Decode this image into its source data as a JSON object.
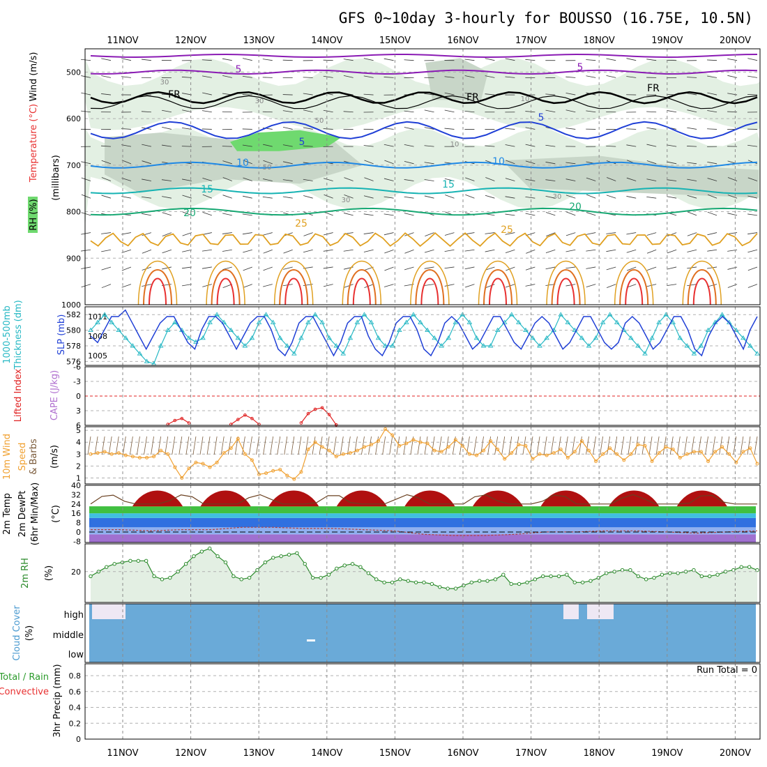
{
  "title": "GFS 0~10day 3-hourly for BOUSSO (16.75E, 10.5N)",
  "colors": {
    "frame": "#000000",
    "grid": "#b0b0b0",
    "rh_light": "#e3f0e3",
    "rh_mid": "#c8d6c8",
    "rh_dark": "#a8bca8",
    "rh_green": "#6fd96f",
    "purple": "#8a1ab4",
    "blue_dark": "#1f3fd6",
    "blue_mid": "#1e88e5",
    "teal": "#16b3b3",
    "green_teal": "#17a873",
    "orange": "#e0a020",
    "orange_dark": "#e07020",
    "red": "#e83030",
    "cyan_series": "#26b8c4",
    "slp_blue": "#1f3fd6",
    "li_red": "#e02020",
    "wind_orange": "#f0a030",
    "cloud_blue": "#6aaad8",
    "rh_series": "#2a8a2a"
  },
  "dates": [
    "11NOV",
    "12NOV",
    "13NOV",
    "14NOV",
    "15NOV",
    "16NOV",
    "17NOV",
    "18NOV",
    "19NOV",
    "20NOV"
  ],
  "panel_labels": {
    "upper": {
      "rh": "RH (%)",
      "temperature": "Temperature (°C)",
      "wind": "Wind (m/s)",
      "millibars": "(millibars)"
    },
    "thick": {
      "line1": "1000-500mb",
      "line2": "Thickness (dm)",
      "slp": "SLP (mb)"
    },
    "li": {
      "lifted": "Lifted Index",
      "cape": "CAPE (J/kg)"
    },
    "wind10": {
      "line1": "10m Wind",
      "speed": "Speed",
      "barbs": "& Barbs",
      "unit": "(m/s)"
    },
    "temp2m": {
      "line1": "2m Temp",
      "line2": "2m DewPt",
      "line3": "(6hr Min/Max)",
      "unit": "(°C)"
    },
    "rh2m": {
      "name": "2m RH",
      "unit": "(%)"
    },
    "cloud": {
      "name": "Cloud Cover",
      "unit": "(%)",
      "high": "high",
      "middle": "middle",
      "low": "low"
    },
    "precip": {
      "line1": "Total / Rain",
      "line2": "Convective",
      "name": "3hr Precip (mm)"
    }
  },
  "run_total": "Run Total = 0",
  "contour_labels": {
    "wind_5a": "5",
    "wind_5b": "5",
    "fr1": "FR",
    "fr2": "FR",
    "fr3": "FR",
    "t5a": "5",
    "t5b": "5",
    "t10a": "10",
    "t10b": "10",
    "t15a": "15",
    "t15b": "15",
    "t20a": "20",
    "t20b": "20",
    "t25a": "25",
    "t25b": "25",
    "rh30a": "30",
    "rh30b": "30",
    "rh30c": "30",
    "rh30d": "30",
    "rh50a": "50",
    "rh50b": "50",
    "rh10a": "10",
    "rh10b": "10"
  },
  "chart_data": [
    {
      "type": "contour",
      "name": "upper-air cross section",
      "y_ticks": [
        "500",
        "600",
        "700",
        "800",
        "900",
        "1000"
      ],
      "ylim": [
        450,
        1000
      ],
      "isotherms_c": [
        -5,
        5,
        10,
        15,
        20,
        25
      ],
      "rh_contours_pct": [
        10,
        30,
        50
      ]
    },
    {
      "type": "line",
      "name": "thickness-slp",
      "thickness_ticks": [
        "582",
        "580",
        "578",
        "576"
      ],
      "slp_ticks": [
        "1011",
        "1008",
        "1005"
      ],
      "ylim_thickness": [
        575.5,
        583
      ],
      "ylim_slp": [
        1003.5,
        1012.5
      ],
      "thickness": [
        580,
        581,
        582,
        581,
        580,
        579,
        578,
        577,
        576,
        575.7,
        578,
        580,
        581,
        580,
        579,
        578.5,
        579,
        581,
        582,
        581,
        580,
        579,
        578,
        579,
        581,
        582,
        581,
        579,
        578,
        577,
        579,
        581,
        582,
        581,
        579,
        578,
        577,
        579,
        581,
        582,
        581,
        579,
        578,
        578,
        580,
        581,
        582,
        581,
        580,
        579,
        578,
        579,
        581,
        582,
        581,
        579,
        578,
        578,
        580,
        581,
        582,
        581,
        580,
        579,
        578,
        579,
        580,
        582,
        581,
        580,
        579,
        578,
        579,
        581,
        582,
        581,
        580,
        579,
        578,
        577,
        579,
        581,
        582,
        581,
        579,
        578,
        577,
        578,
        580,
        581,
        582,
        581,
        580,
        579,
        578,
        577
      ],
      "slp": [
        1008,
        1007,
        1009,
        1011,
        1011,
        1012,
        1010,
        1008,
        1006,
        1008,
        1010,
        1011,
        1011,
        1009,
        1007,
        1006,
        1009,
        1011,
        1011,
        1010,
        1008,
        1006,
        1008,
        1010,
        1011,
        1011,
        1009,
        1006,
        1005,
        1007,
        1010,
        1011,
        1011,
        1009,
        1007,
        1005,
        1007,
        1010,
        1011,
        1011,
        1008,
        1006,
        1005,
        1007,
        1010,
        1011,
        1011,
        1009,
        1006,
        1005,
        1007,
        1010,
        1011,
        1010,
        1008,
        1006,
        1007,
        1009,
        1011,
        1011,
        1009,
        1007,
        1006,
        1008,
        1010,
        1011,
        1010,
        1008,
        1006,
        1007,
        1009,
        1011,
        1011,
        1009,
        1007,
        1006,
        1007,
        1010,
        1011,
        1010,
        1008,
        1006,
        1007,
        1009,
        1011,
        1011,
        1009,
        1006,
        1005,
        1008,
        1010,
        1011,
        1010,
        1008,
        1006,
        1009,
        1011
      ]
    },
    {
      "type": "line",
      "name": "lifted-index-cape",
      "y_ticks": [
        "-6",
        "-3",
        "0",
        "3",
        "6"
      ],
      "ylim": [
        -6,
        6
      ],
      "lifted_index": [
        null,
        null,
        null,
        null,
        null,
        null,
        null,
        null,
        null,
        null,
        null,
        5.8,
        5.0,
        4.6,
        5.5,
        null,
        null,
        null,
        null,
        null,
        5.8,
        4.8,
        3.9,
        4.6,
        5.8,
        null,
        null,
        null,
        null,
        null,
        5.5,
        3.6,
        2.7,
        2.4,
        3.8,
        5.9
      ],
      "cape_jkg": []
    },
    {
      "type": "line",
      "name": "10m-wind-speed",
      "y_ticks": [
        "1",
        "2",
        "3",
        "4",
        "5"
      ],
      "ylim": [
        0.5,
        5.3
      ],
      "speed": [
        3.0,
        3.1,
        3.2,
        3.0,
        3.1,
        2.9,
        2.8,
        2.7,
        2.7,
        2.8,
        3.3,
        3.0,
        1.9,
        1.0,
        1.8,
        2.3,
        2.2,
        1.9,
        2.3,
        3.1,
        3.5,
        4.3,
        3.0,
        2.5,
        1.3,
        1.4,
        1.6,
        1.7,
        1.2,
        0.9,
        1.5,
        3.4,
        4.0,
        3.6,
        3.3,
        2.8,
        3.0,
        3.1,
        3.3,
        3.6,
        3.8,
        4.1,
        5.1,
        4.6,
        3.7,
        3.9,
        4.2,
        4.0,
        3.9,
        3.3,
        3.2,
        3.6,
        4.2,
        3.7,
        3.0,
        2.9,
        3.3,
        4.1,
        3.4,
        2.6,
        3.1,
        3.8,
        3.7,
        2.6,
        3.0,
        2.9,
        3.1,
        3.4,
        2.7,
        3.2,
        4.1,
        3.3,
        2.4,
        3.0,
        3.5,
        3.0,
        2.5,
        3.0,
        3.8,
        3.7,
        2.4,
        3.1,
        3.6,
        3.4,
        2.7,
        3.0,
        3.2,
        3.2,
        2.4,
        3.2,
        3.6,
        3.0,
        2.3,
        3.2,
        3.5,
        2.2
      ]
    },
    {
      "type": "area",
      "name": "2m-temp-dewpoint",
      "y_ticks": [
        "40",
        "32",
        "24",
        "16",
        "8",
        "0",
        "-8"
      ],
      "ylim": [
        -9,
        40
      ],
      "temp_max_c": [
        38.5,
        39.5,
        39.5,
        39.0,
        39.0,
        39.0,
        39.0,
        39.0,
        39.0
      ],
      "temp_min_c": [
        22,
        23,
        23,
        23,
        23,
        23,
        23,
        23,
        23,
        22
      ],
      "dewpoint_c": [
        2,
        2,
        1,
        2,
        2,
        4,
        4,
        3,
        3,
        2,
        1,
        -2,
        -3,
        -3,
        -2,
        0,
        0,
        1,
        1,
        0,
        -1,
        0,
        1
      ]
    },
    {
      "type": "area",
      "name": "2m-rh",
      "y_ticks": [
        "20"
      ],
      "ylim": [
        0,
        38
      ],
      "rh": [
        17,
        20,
        23,
        25,
        26,
        27,
        27,
        27,
        17,
        15,
        16,
        20,
        25,
        30,
        33,
        35,
        30,
        26,
        17,
        15,
        16,
        21,
        26,
        29,
        30,
        31,
        32,
        25,
        16,
        16,
        18,
        22,
        24,
        25,
        23,
        19,
        15,
        13,
        13,
        15,
        14,
        13,
        13,
        12,
        10,
        9,
        9,
        11,
        13,
        14,
        14,
        15,
        18,
        12,
        12,
        13,
        15,
        17,
        17,
        17,
        18,
        13,
        13,
        14,
        16,
        19,
        20,
        21,
        21,
        17,
        15,
        16,
        18,
        19,
        19,
        20,
        21,
        17,
        17,
        18,
        20,
        21,
        23,
        23,
        21
      ]
    },
    {
      "type": "area",
      "name": "cloud-cover",
      "levels": [
        "high",
        "middle",
        "low"
      ],
      "high_cover_pct_gaps": [
        60,
        80,
        60,
        50
      ]
    },
    {
      "type": "bar",
      "name": "3hr-precip",
      "y_ticks": [
        "0",
        "0.2",
        "0.4",
        "0.6",
        "0.8"
      ],
      "ylim": [
        0,
        0.95
      ],
      "total": [],
      "convective": []
    }
  ]
}
